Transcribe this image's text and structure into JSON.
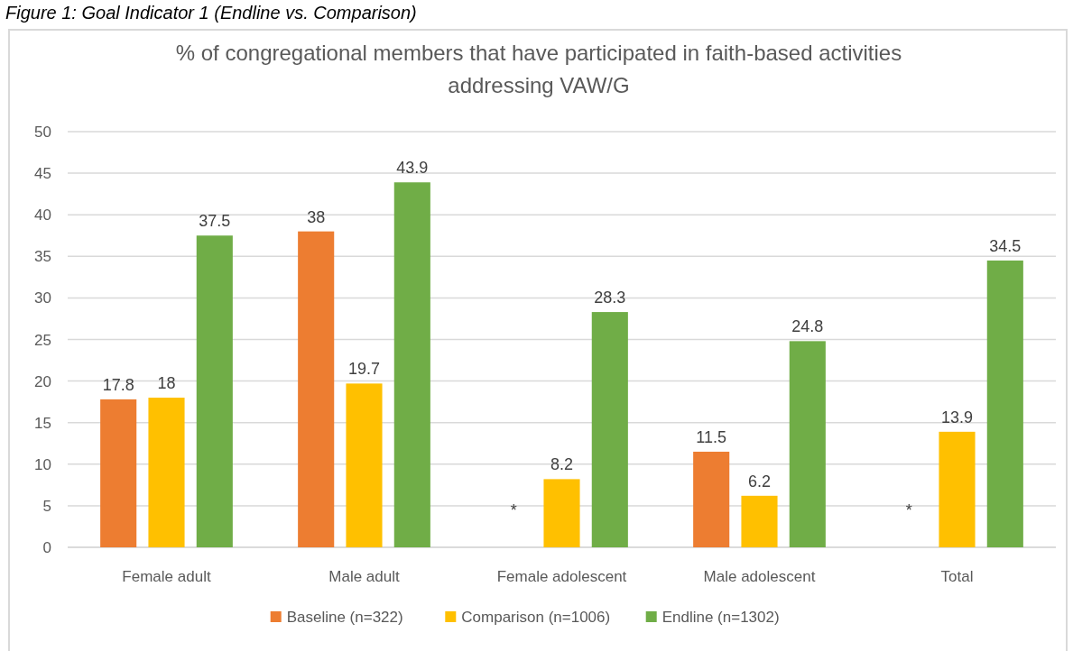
{
  "chart_data": {
    "type": "bar",
    "title": "% of congregational members that have participated in faith-based activities addressing VAW/G",
    "annotations": [
      "Figure 1: Goal Indicator 1 (Endline vs. Comparison)"
    ],
    "categories": [
      "Female adult",
      "Male adult",
      "Female adolescent",
      "Male adolescent",
      "Total"
    ],
    "series": [
      {
        "name": "Baseline (n=322)",
        "color": "#ed7d31",
        "values": [
          17.8,
          38,
          null,
          11.5,
          null
        ],
        "value_labels": [
          "17.8",
          "38",
          "*",
          "11.5",
          "*"
        ]
      },
      {
        "name": "Comparison (n=1006)",
        "color": "#ffc000",
        "values": [
          18,
          19.7,
          8.2,
          6.2,
          13.9
        ],
        "value_labels": [
          "18",
          "19.7",
          "8.2",
          "6.2",
          "13.9"
        ]
      },
      {
        "name": "Endline (n=1302)",
        "color": "#70ad47",
        "values": [
          37.5,
          43.9,
          28.3,
          24.8,
          34.5
        ],
        "value_labels": [
          "37.5",
          "43.9",
          "28.3",
          "24.8",
          "34.5"
        ]
      }
    ],
    "ylim": [
      0,
      50
    ],
    "yticks": [
      0,
      5,
      10,
      15,
      20,
      25,
      30,
      35,
      40,
      45,
      50
    ],
    "grid": "y",
    "legend": "bottom"
  }
}
